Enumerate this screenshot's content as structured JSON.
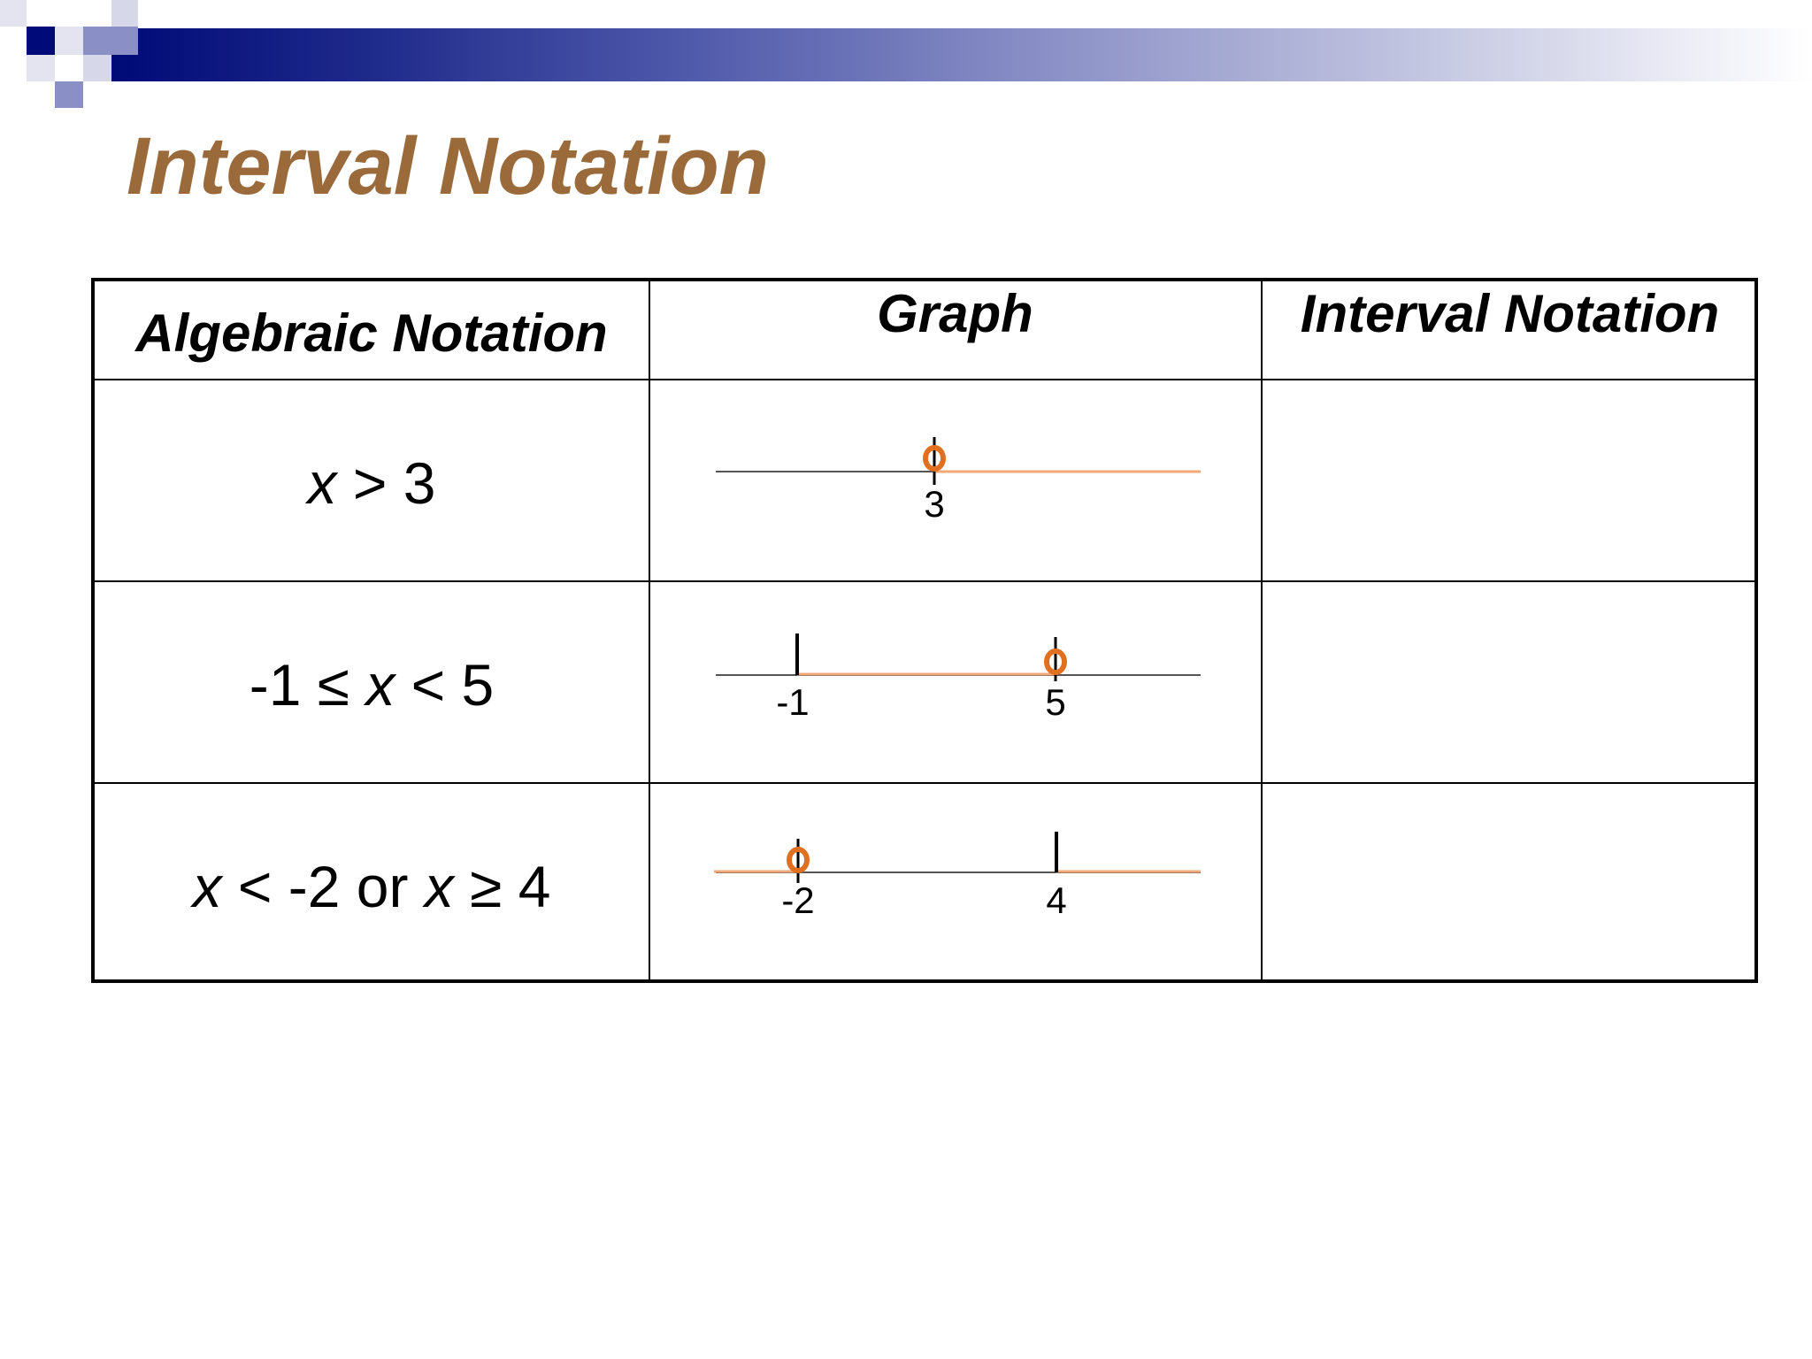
{
  "title": "Interval Notation",
  "table": {
    "headers": {
      "algebraic": "Algebraic Notation",
      "graph": "Graph",
      "interval": "Interval Notation"
    },
    "rows": [
      {
        "algebraic": {
          "pre": "",
          "var1": "x",
          "mid": " > 3",
          "var2": "",
          "post": ""
        },
        "graph": {
          "ticks": [
            {
              "label": "3",
              "value": 3
            }
          ],
          "open_points": [
            3
          ],
          "closed_points": [],
          "shaded": "right of 3"
        },
        "interval": ""
      },
      {
        "algebraic": {
          "pre": "-1 ≤ ",
          "var1": "x",
          "mid": " < 5",
          "var2": "",
          "post": ""
        },
        "graph": {
          "ticks": [
            {
              "label": "-1",
              "value": -1
            },
            {
              "label": "5",
              "value": 5
            }
          ],
          "open_points": [
            5
          ],
          "closed_points": [
            -1
          ],
          "shaded": "between -1 and 5"
        },
        "interval": ""
      },
      {
        "algebraic": {
          "pre": "",
          "var1": "x",
          "mid": " < -2 or ",
          "var2": "x",
          "post": " ≥ 4"
        },
        "graph": {
          "ticks": [
            {
              "label": "-2",
              "value": -2
            },
            {
              "label": "4",
              "value": 4
            }
          ],
          "open_points": [
            -2
          ],
          "closed_points": [
            4
          ],
          "shaded": "left of -2 and right of 4"
        },
        "interval": ""
      }
    ]
  },
  "colors": {
    "title": "#9b6a3a",
    "shade": "#f0a878",
    "open_circle": "#e07020",
    "axis": "#555555",
    "banner_start": "#000a78"
  }
}
